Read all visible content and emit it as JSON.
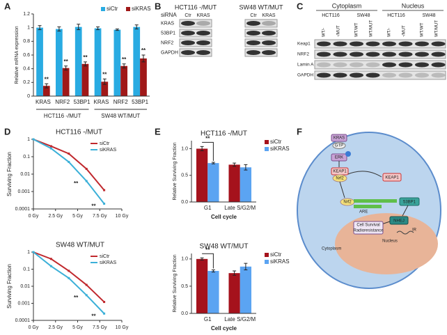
{
  "panels": [
    "A",
    "B",
    "C",
    "D",
    "E",
    "F"
  ],
  "chart_data": [
    {
      "type": "bar",
      "ylabel": "Relative mRNA expression",
      "categories": [
        "KRAS",
        "NRF2",
        "53BP1",
        "KRAS",
        "NRF2",
        "53BP1"
      ],
      "groups": [
        "HCT116 -/MUT",
        "SW48 WT/MUT"
      ],
      "ylim": [
        0,
        1.2
      ],
      "yticks": [
        0,
        0.2,
        0.4,
        0.6,
        0.8,
        1,
        1.2
      ],
      "legend": "top",
      "series": [
        {
          "name": "siCtr",
          "color": "#29abe2",
          "values": [
            1.0,
            0.98,
            1.01,
            0.99,
            0.97,
            1.01
          ],
          "errors": [
            0.03,
            0.03,
            0.04,
            0.02,
            0.01,
            0.03
          ]
        },
        {
          "name": "siKRAS",
          "color": "#a01818",
          "values": [
            0.15,
            0.41,
            0.47,
            0.21,
            0.44,
            0.55
          ],
          "errors": [
            0.03,
            0.03,
            0.03,
            0.04,
            0.03,
            0.05
          ],
          "significance": [
            "**",
            "**",
            "**",
            "**",
            "**",
            "**"
          ]
        }
      ]
    },
    {
      "type": "line",
      "title": "HCT116 -/MUT",
      "ylabel": "Surviving Fraction",
      "log_y": true,
      "x": [
        0,
        2,
        4,
        6,
        8
      ],
      "xlim": [
        0,
        10
      ],
      "xticks": [
        {
          "value": 0,
          "label": "0 Gy"
        },
        {
          "value": 2.5,
          "label": "2.5 Gy"
        },
        {
          "value": 5,
          "label": "5 Gy"
        },
        {
          "value": 7.5,
          "label": "7.5 Gy"
        },
        {
          "value": 10,
          "label": "10 Gy"
        }
      ],
      "ylim": [
        0.0001,
        1
      ],
      "yticks": [
        1,
        0.1,
        0.01,
        0.001,
        0.0001
      ],
      "legend": "upper right",
      "series": [
        {
          "name": "siCtr",
          "color": "#c0282d",
          "values": [
            1,
            0.4,
            0.15,
            0.02,
            0.0012
          ]
        },
        {
          "name": "siKRAS",
          "color": "#3bb0d8",
          "values": [
            1,
            0.3,
            0.05,
            0.004,
            0.0002
          ],
          "significance": [
            null,
            null,
            null,
            "**",
            "**"
          ]
        }
      ]
    },
    {
      "type": "line",
      "title": "SW48 WT/MUT",
      "ylabel": "Surviving Fraction",
      "log_y": true,
      "x": [
        0,
        2,
        4,
        6,
        8
      ],
      "xlim": [
        0,
        10
      ],
      "xticks": [
        {
          "value": 0,
          "label": "0 Gy"
        },
        {
          "value": 2.5,
          "label": "2.5 Gy"
        },
        {
          "value": 5,
          "label": "5 Gy"
        },
        {
          "value": 7.5,
          "label": "7.5 Gy"
        },
        {
          "value": 10,
          "label": "10 Gy"
        }
      ],
      "ylim": [
        0.0001,
        1
      ],
      "yticks": [
        1,
        0.1,
        0.01,
        0.001,
        0.0001
      ],
      "legend": "upper right",
      "series": [
        {
          "name": "siCtr",
          "color": "#c0282d",
          "values": [
            1,
            0.4,
            0.08,
            0.012,
            0.0012
          ]
        },
        {
          "name": "siKRAS",
          "color": "#3bb0d8",
          "values": [
            1,
            0.15,
            0.03,
            0.003,
            0.00025
          ],
          "significance": [
            null,
            null,
            null,
            "**",
            "**"
          ]
        }
      ]
    },
    {
      "type": "bar",
      "title": "HCT116 -/MUT",
      "ylabel": "Relative Surviving Fraction",
      "xlabel": "Cell cycle",
      "categories": [
        "G1",
        "Late S/G2/M"
      ],
      "ylim": [
        0,
        1.15
      ],
      "yticks": [
        {
          "value": 0,
          "label": "0.0"
        },
        0.5,
        {
          "value": 1,
          "label": "1.0"
        }
      ],
      "legend": "right",
      "series": [
        {
          "name": "siCtr",
          "color": "#a5121c",
          "values": [
            1.0,
            0.7
          ],
          "errors": [
            0.04,
            0.03
          ]
        },
        {
          "name": "siKRAS",
          "color": "#5ba4f2",
          "values": [
            0.73,
            0.65
          ],
          "errors": [
            0.015,
            0.05
          ],
          "significance": [
            "**",
            null
          ]
        }
      ]
    },
    {
      "type": "bar",
      "title": "SW48 WT/MUT",
      "ylabel": "Relative Surviving Fraction",
      "xlabel": "Cell cycle",
      "categories": [
        "G1",
        "Late S/G2/M"
      ],
      "ylim": [
        0,
        1.1
      ],
      "yticks": [
        {
          "value": 0,
          "label": "0.0"
        },
        0.5,
        {
          "value": 1,
          "label": "1.0"
        }
      ],
      "legend": "right",
      "series": [
        {
          "name": "siCtr",
          "color": "#a5121c",
          "values": [
            1.0,
            0.74
          ],
          "errors": [
            0.02,
            0.04
          ]
        },
        {
          "name": "siKRAS",
          "color": "#5ba4f2",
          "values": [
            0.78,
            0.86
          ],
          "errors": [
            0.02,
            0.06
          ],
          "significance": [
            "**",
            null
          ]
        }
      ]
    }
  ],
  "blots": [
    {
      "row_header": "siRNA",
      "groups": [
        {
          "title": "HCT116 -/MUT",
          "lanes": [
            "Ctr",
            "KRAS"
          ]
        },
        {
          "title": "SW48 WT/MUT",
          "lanes": [
            "Ctr",
            "KRAS"
          ]
        }
      ],
      "rows": [
        "KRAS",
        "53BP1",
        "NRF2",
        "GAPDH"
      ]
    },
    {
      "sections": [
        {
          "title": "Cytoplasm",
          "groups": [
            {
              "title": "HCT116",
              "lanes": [
                "WT/-",
                "-/MUT"
              ]
            },
            {
              "title": "SW48",
              "lanes": [
                "WT/WT",
                "WT/MUT"
              ]
            }
          ]
        },
        {
          "title": "Nucleus",
          "groups": [
            {
              "title": "HCT116",
              "lanes": [
                "WT/-",
                "-/MUT"
              ]
            },
            {
              "title": "SW48",
              "lanes": [
                "WT/WT",
                "WT/MUT"
              ]
            }
          ]
        }
      ],
      "rows": [
        "Keap1",
        "NRF2",
        "Lamin A",
        "GAPDH"
      ]
    }
  ],
  "diagram": {
    "nodes": [
      "KRAS",
      "GTP",
      "ERK",
      "KEAP1",
      "Nrf2",
      "KEAP1",
      "Nrf2",
      "ARE",
      "53BP1",
      "NHEJ",
      "IR",
      "Cell Survival",
      "Radioresistance",
      "Nucleus",
      "Cytoplasm"
    ]
  }
}
